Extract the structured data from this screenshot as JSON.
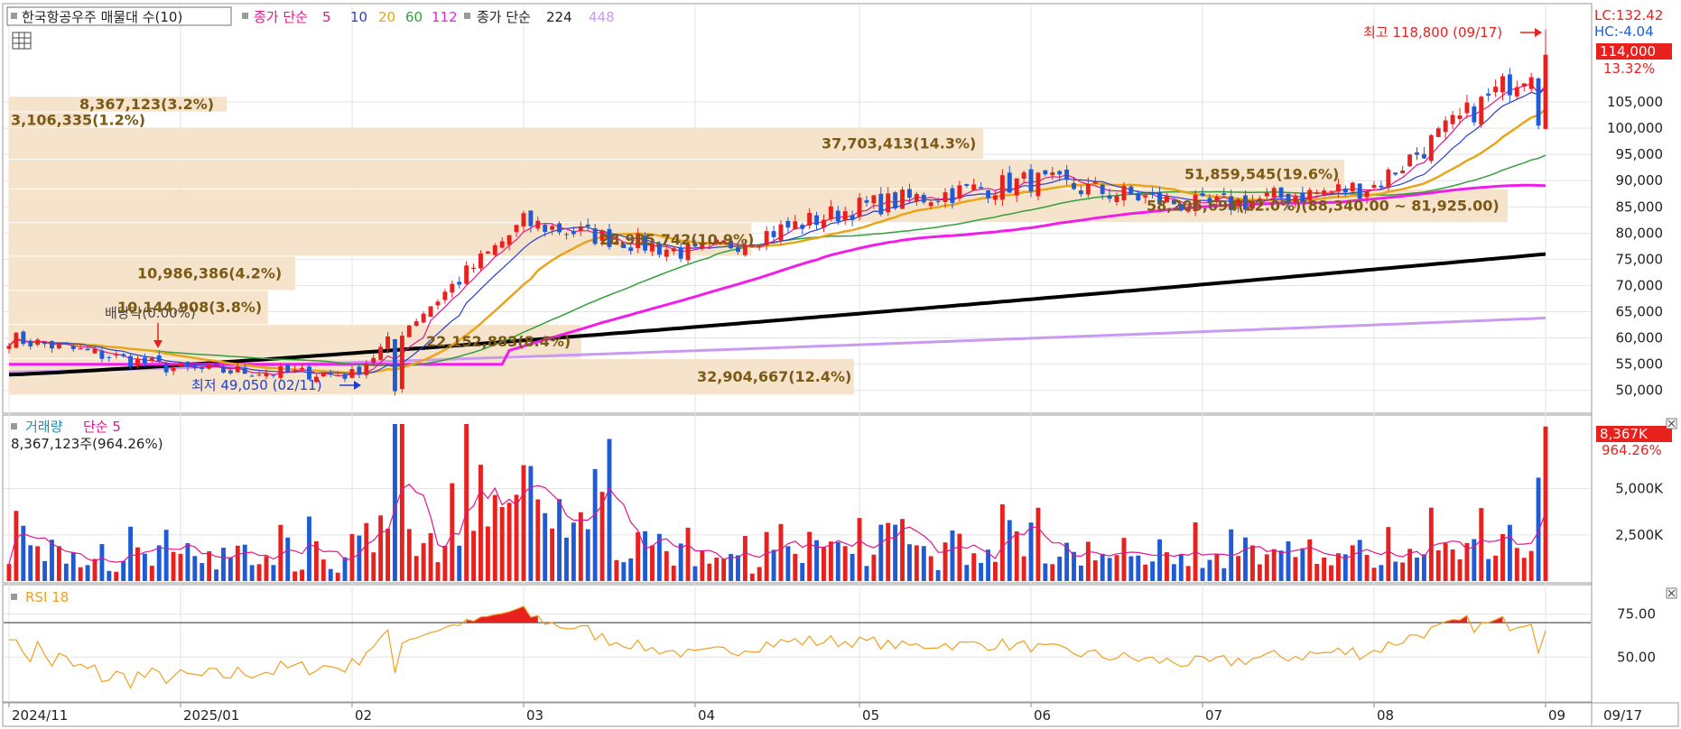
{
  "header": {
    "title": "한국항공우주 매물대 수(10)",
    "ma_label": "종가 단순",
    "ma_periods": [
      "5",
      "10",
      "20",
      "60",
      "112"
    ],
    "ma_label_2": "종가 단순",
    "ma_periods_2": [
      "224",
      "448"
    ]
  },
  "colors": {
    "up": "#e8201e",
    "down": "#1f5bd6",
    "ma5": "#e0188c",
    "ma10": "#2a3fd0",
    "ma20": "#e8a51a",
    "ma60": "#34a03c",
    "ma112": "#f01ee8",
    "ma224": "#000000",
    "ma448": "#c99af0",
    "volume_profile": "#f5e3cc",
    "rsi": "#f0a020",
    "rsi_fill": "#e8201e"
  },
  "price_panel": {
    "lc": "LC:132.42",
    "hc": "HC:-4.04",
    "current_price": "114,000",
    "change_pct": "13.32%",
    "high_annotation": "최고 118,800 (09/17)",
    "low_annotation": "최저 49,050 (02/11)",
    "dividend_annotation": "배당락(0.00%)",
    "y_ticks": [
      "105,000",
      "100,000",
      "95,000",
      "90,000",
      "85,000",
      "80,000",
      "75,000",
      "70,000",
      "65,000",
      "60,000",
      "55,000",
      "50,000"
    ],
    "volume_profile_labels": [
      "8,367,123(3.2%)",
      "3,106,335(1.2%)",
      "37,703,413(14.3%)",
      "51,859,545(19.6%)",
      "58,206,694(22.0%)(88,340.00 ~ 81,925.00)",
      "28,985,742(10.9%)",
      "10,986,386(4.2%)",
      "10,144,908(3.8%)",
      "22,152,883(8.4%)",
      "32,904,667(12.4%)"
    ]
  },
  "volume_panel": {
    "title": "거래량",
    "ma_label": "단순 5",
    "info": "8,367,123주(964.26%)",
    "current": "8,367K",
    "current_pct": "964.26%",
    "y_ticks": [
      "5,000K",
      "2,500K"
    ]
  },
  "rsi_panel": {
    "title": "RSI 18",
    "y_ticks": [
      "75.00",
      "50.00"
    ]
  },
  "x_axis": {
    "labels": [
      "2024/11",
      "2025/01",
      "02",
      "03",
      "04",
      "05",
      "06",
      "07",
      "08",
      "09"
    ],
    "last_date": "09/17"
  },
  "chart_data": {
    "type": "candlestick",
    "title": "한국항공우주 매물대 수(10)",
    "price_range": [
      46000,
      121000
    ],
    "volume_range": [
      0,
      8500
    ],
    "rsi_range": [
      25,
      90
    ],
    "rsi_overbought": 70,
    "monthly_anchor_closes": [
      {
        "month": "2024/11",
        "close": 60000
      },
      {
        "month": "2025/01",
        "close": 54000
      },
      {
        "month": "02",
        "close": 53000
      },
      {
        "month": "03",
        "close": 82000
      },
      {
        "month": "04",
        "close": 76000
      },
      {
        "month": "05",
        "close": 85000
      },
      {
        "month": "06",
        "close": 90000
      },
      {
        "month": "07",
        "close": 85000
      },
      {
        "month": "08",
        "close": 89000
      },
      {
        "month": "09",
        "close": 114000
      }
    ],
    "high": {
      "date": "09/17",
      "price": 118800
    },
    "low": {
      "date": "02/11",
      "price": 49050
    },
    "last": {
      "date": "09/17",
      "close": 114000,
      "change_pct": 13.32,
      "volume_k": 8367
    },
    "ma_end_values": {
      "ma20": 96000,
      "ma60": 92000,
      "ma112": 89000,
      "ma224": 76000,
      "ma448": 63800
    },
    "volume_profile": [
      {
        "low": 103000,
        "high": 106000,
        "volume": 8367123,
        "pct": 3.2
      },
      {
        "low": 100000,
        "high": 103000,
        "volume": 3106335,
        "pct": 1.2
      },
      {
        "low": 94000,
        "high": 100000,
        "volume": 37703413,
        "pct": 14.3
      },
      {
        "low": 88340,
        "high": 94000,
        "volume": 51859545,
        "pct": 19.6
      },
      {
        "low": 81925,
        "high": 88340,
        "volume": 58206694,
        "pct": 22.0
      },
      {
        "low": 75500,
        "high": 81925,
        "volume": 28985742,
        "pct": 10.9
      },
      {
        "low": 69000,
        "high": 75500,
        "volume": 10986386,
        "pct": 4.2
      },
      {
        "low": 62500,
        "high": 69000,
        "volume": 10144908,
        "pct": 3.8
      },
      {
        "low": 56000,
        "high": 62500,
        "volume": 22152883,
        "pct": 8.4
      },
      {
        "low": 49050,
        "high": 56000,
        "volume": 32904667,
        "pct": 12.4
      }
    ]
  }
}
